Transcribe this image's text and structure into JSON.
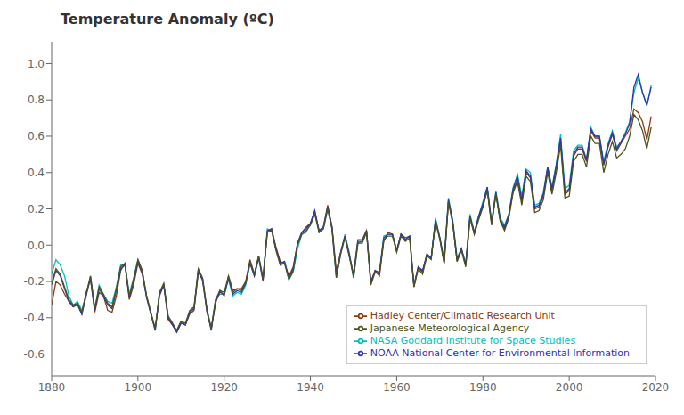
{
  "chart_data": {
    "type": "line",
    "title": "Temperature Anomaly (ºC)",
    "x": [
      1880,
      1881,
      1882,
      1883,
      1884,
      1885,
      1886,
      1887,
      1888,
      1889,
      1890,
      1891,
      1892,
      1893,
      1894,
      1895,
      1896,
      1897,
      1898,
      1899,
      1900,
      1901,
      1902,
      1903,
      1904,
      1905,
      1906,
      1907,
      1908,
      1909,
      1910,
      1911,
      1912,
      1913,
      1914,
      1915,
      1916,
      1917,
      1918,
      1919,
      1920,
      1921,
      1922,
      1923,
      1924,
      1925,
      1926,
      1927,
      1928,
      1929,
      1930,
      1931,
      1932,
      1933,
      1934,
      1935,
      1936,
      1937,
      1938,
      1939,
      1940,
      1941,
      1942,
      1943,
      1944,
      1945,
      1946,
      1947,
      1948,
      1949,
      1950,
      1951,
      1952,
      1953,
      1954,
      1955,
      1956,
      1957,
      1958,
      1959,
      1960,
      1961,
      1962,
      1963,
      1964,
      1965,
      1966,
      1967,
      1968,
      1969,
      1970,
      1971,
      1972,
      1973,
      1974,
      1975,
      1976,
      1977,
      1978,
      1979,
      1980,
      1981,
      1982,
      1983,
      1984,
      1985,
      1986,
      1987,
      1988,
      1989,
      1990,
      1991,
      1992,
      1993,
      1994,
      1995,
      1996,
      1997,
      1998,
      1999,
      2000,
      2001,
      2002,
      2003,
      2004,
      2005,
      2006,
      2007,
      2008,
      2009,
      2010,
      2011,
      2012,
      2013,
      2014,
      2015,
      2016,
      2017,
      2018,
      2019
    ],
    "series": [
      {
        "name": "NASA Goddard Institute for Space Studies",
        "color": "#00BFBF",
        "values": [
          -0.16,
          -0.08,
          -0.11,
          -0.17,
          -0.28,
          -0.33,
          -0.31,
          -0.36,
          -0.27,
          -0.17,
          -0.35,
          -0.22,
          -0.27,
          -0.31,
          -0.32,
          -0.23,
          -0.11,
          -0.11,
          -0.27,
          -0.18,
          -0.08,
          -0.14,
          -0.28,
          -0.37,
          -0.47,
          -0.26,
          -0.22,
          -0.39,
          -0.43,
          -0.48,
          -0.43,
          -0.44,
          -0.37,
          -0.35,
          -0.13,
          -0.2,
          -0.36,
          -0.46,
          -0.3,
          -0.27,
          -0.27,
          -0.19,
          -0.28,
          -0.26,
          -0.27,
          -0.22,
          -0.1,
          -0.17,
          -0.07,
          -0.19,
          0.09,
          0.08,
          -0.02,
          -0.11,
          -0.09,
          -0.19,
          -0.15,
          -0.02,
          0.06,
          0.07,
          0.12,
          0.19,
          0.07,
          0.09,
          0.2,
          0.09,
          -0.18,
          -0.05,
          0.06,
          -0.04,
          -0.18,
          0.01,
          0.02,
          0.08,
          -0.21,
          -0.14,
          -0.15,
          0.05,
          0.06,
          0.06,
          -0.03,
          0.06,
          0.03,
          0.05,
          -0.22,
          -0.12,
          -0.14,
          -0.06,
          -0.07,
          0.15,
          0.04,
          -0.08,
          0.26,
          0.14,
          -0.07,
          -0.02,
          -0.1,
          0.17,
          0.07,
          0.16,
          0.24,
          0.32,
          0.13,
          0.3,
          0.15,
          0.11,
          0.17,
          0.32,
          0.39,
          0.27,
          0.42,
          0.4,
          0.22,
          0.23,
          0.29,
          0.43,
          0.32,
          0.45,
          0.61,
          0.31,
          0.33,
          0.52,
          0.55,
          0.55,
          0.47,
          0.65,
          0.6,
          0.6,
          0.46,
          0.56,
          0.63,
          0.54,
          0.57,
          0.62,
          0.68,
          0.84,
          0.92,
          0.84,
          0.77,
          0.88
        ]
      },
      {
        "name": "Hadley Center/Climatic Research Unit",
        "color": "#8B3A0F",
        "values": [
          -0.33,
          -0.2,
          -0.22,
          -0.27,
          -0.31,
          -0.34,
          -0.32,
          -0.38,
          -0.26,
          -0.19,
          -0.37,
          -0.26,
          -0.28,
          -0.36,
          -0.37,
          -0.28,
          -0.14,
          -0.1,
          -0.3,
          -0.22,
          -0.1,
          -0.16,
          -0.28,
          -0.38,
          -0.46,
          -0.28,
          -0.22,
          -0.41,
          -0.44,
          -0.47,
          -0.42,
          -0.44,
          -0.38,
          -0.36,
          -0.15,
          -0.19,
          -0.37,
          -0.46,
          -0.32,
          -0.25,
          -0.28,
          -0.17,
          -0.25,
          -0.24,
          -0.24,
          -0.2,
          -0.08,
          -0.16,
          -0.06,
          -0.2,
          0.07,
          0.09,
          -0.01,
          -0.09,
          -0.1,
          -0.17,
          -0.12,
          0.01,
          0.07,
          0.1,
          0.12,
          0.18,
          0.08,
          0.1,
          0.22,
          0.1,
          -0.14,
          -0.04,
          0.05,
          -0.06,
          -0.16,
          0.03,
          0.03,
          0.08,
          -0.2,
          -0.14,
          -0.17,
          0.02,
          0.07,
          0.06,
          -0.03,
          0.06,
          0.04,
          0.05,
          -0.23,
          -0.12,
          -0.15,
          -0.05,
          -0.07,
          0.13,
          0.04,
          -0.1,
          0.24,
          0.12,
          -0.09,
          -0.02,
          -0.11,
          0.15,
          0.06,
          0.15,
          0.22,
          0.31,
          0.12,
          0.28,
          0.14,
          0.09,
          0.16,
          0.3,
          0.36,
          0.24,
          0.4,
          0.37,
          0.2,
          0.21,
          0.27,
          0.42,
          0.3,
          0.43,
          0.58,
          0.28,
          0.3,
          0.49,
          0.53,
          0.53,
          0.46,
          0.63,
          0.59,
          0.59,
          0.44,
          0.54,
          0.61,
          0.52,
          0.56,
          0.6,
          0.64,
          0.75,
          0.73,
          0.68,
          0.58,
          0.71
        ]
      },
      {
        "name": "NOAA National Center for Environmental Information",
        "color": "#3333AA",
        "values": [
          -0.22,
          -0.14,
          -0.17,
          -0.24,
          -0.31,
          -0.34,
          -0.33,
          -0.38,
          -0.28,
          -0.18,
          -0.36,
          -0.24,
          -0.28,
          -0.33,
          -0.35,
          -0.25,
          -0.13,
          -0.11,
          -0.29,
          -0.2,
          -0.09,
          -0.15,
          -0.29,
          -0.38,
          -0.47,
          -0.27,
          -0.22,
          -0.4,
          -0.44,
          -0.48,
          -0.43,
          -0.44,
          -0.37,
          -0.35,
          -0.14,
          -0.19,
          -0.36,
          -0.47,
          -0.31,
          -0.26,
          -0.27,
          -0.18,
          -0.27,
          -0.25,
          -0.26,
          -0.21,
          -0.1,
          -0.17,
          -0.07,
          -0.19,
          0.08,
          0.09,
          -0.02,
          -0.1,
          -0.09,
          -0.18,
          -0.13,
          0.01,
          0.07,
          0.09,
          0.12,
          0.19,
          0.08,
          0.1,
          0.21,
          0.1,
          -0.17,
          -0.04,
          0.05,
          -0.05,
          -0.17,
          0.02,
          0.02,
          0.08,
          -0.21,
          -0.14,
          -0.15,
          0.04,
          0.06,
          0.06,
          -0.03,
          0.06,
          0.03,
          0.05,
          -0.22,
          -0.12,
          -0.14,
          -0.05,
          -0.07,
          0.14,
          0.04,
          -0.09,
          0.25,
          0.13,
          -0.08,
          -0.02,
          -0.11,
          0.16,
          0.07,
          0.16,
          0.23,
          0.32,
          0.12,
          0.29,
          0.14,
          0.1,
          0.17,
          0.31,
          0.38,
          0.25,
          0.41,
          0.38,
          0.21,
          0.22,
          0.28,
          0.43,
          0.31,
          0.44,
          0.59,
          0.29,
          0.31,
          0.5,
          0.54,
          0.54,
          0.47,
          0.64,
          0.6,
          0.6,
          0.45,
          0.55,
          0.62,
          0.53,
          0.57,
          0.61,
          0.67,
          0.87,
          0.94,
          0.84,
          0.77,
          0.87
        ]
      },
      {
        "name": "Japanese Meteorological Agency",
        "color": "#4B5320",
        "values": [
          -0.21,
          -0.13,
          -0.16,
          -0.23,
          -0.3,
          -0.33,
          -0.32,
          -0.37,
          -0.27,
          -0.17,
          -0.35,
          -0.23,
          -0.27,
          -0.32,
          -0.34,
          -0.24,
          -0.12,
          -0.1,
          -0.28,
          -0.19,
          -0.08,
          -0.14,
          -0.28,
          -0.37,
          -0.46,
          -0.26,
          -0.21,
          -0.39,
          -0.43,
          -0.47,
          -0.42,
          -0.43,
          -0.36,
          -0.34,
          -0.13,
          -0.18,
          -0.35,
          -0.46,
          -0.3,
          -0.25,
          -0.26,
          -0.17,
          -0.26,
          -0.24,
          -0.25,
          -0.2,
          -0.09,
          -0.16,
          -0.06,
          -0.18,
          0.07,
          0.08,
          -0.03,
          -0.11,
          -0.1,
          -0.19,
          -0.14,
          0.0,
          0.06,
          0.08,
          0.11,
          0.17,
          0.07,
          0.09,
          0.2,
          0.09,
          -0.18,
          -0.05,
          0.04,
          -0.06,
          -0.18,
          0.01,
          0.01,
          0.07,
          -0.22,
          -0.15,
          -0.16,
          0.03,
          0.05,
          0.05,
          -0.04,
          0.05,
          0.02,
          0.04,
          -0.23,
          -0.13,
          -0.16,
          -0.06,
          -0.08,
          0.13,
          0.03,
          -0.1,
          0.24,
          0.12,
          -0.09,
          -0.03,
          -0.12,
          0.15,
          0.06,
          0.14,
          0.21,
          0.3,
          0.11,
          0.28,
          0.13,
          0.08,
          0.15,
          0.29,
          0.35,
          0.22,
          0.38,
          0.35,
          0.18,
          0.19,
          0.25,
          0.4,
          0.28,
          0.4,
          0.55,
          0.26,
          0.27,
          0.46,
          0.5,
          0.5,
          0.43,
          0.6,
          0.56,
          0.56,
          0.4,
          0.5,
          0.57,
          0.48,
          0.5,
          0.53,
          0.6,
          0.72,
          0.69,
          0.63,
          0.53,
          0.65
        ]
      }
    ],
    "xlim": [
      1880,
      2020
    ],
    "xticks": [
      1880,
      1900,
      1920,
      1940,
      1960,
      1980,
      2000,
      2020
    ],
    "ylim": [
      -0.72,
      1.12
    ],
    "yticks": [
      -0.6,
      -0.4,
      -0.2,
      {
        "value": 0,
        "label": "0.0"
      },
      0.2,
      0.4,
      0.6,
      0.8,
      {
        "value": 1,
        "label": "1.0"
      }
    ],
    "legend": "lower right"
  }
}
